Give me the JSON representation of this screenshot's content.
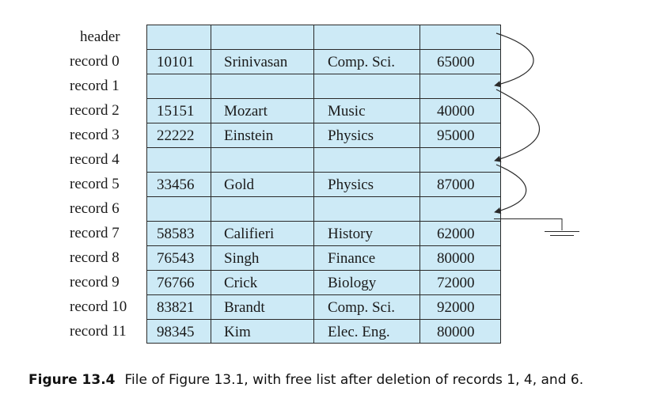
{
  "figure": {
    "labels": {
      "header": "header",
      "records": [
        "record 0",
        "record 1",
        "record 2",
        "record 3",
        "record 4",
        "record 5",
        "record 6",
        "record 7",
        "record 8",
        "record 9",
        "record 10",
        "record 11"
      ]
    },
    "rows": [
      [
        "10101",
        "Srinivasan",
        "Comp. Sci.",
        "65000"
      ],
      [
        "",
        "",
        "",
        ""
      ],
      [
        "15151",
        "Mozart",
        "Music",
        "40000"
      ],
      [
        "22222",
        "Einstein",
        "Physics",
        "95000"
      ],
      [
        "",
        "",
        "",
        ""
      ],
      [
        "33456",
        "Gold",
        "Physics",
        "87000"
      ],
      [
        "",
        "",
        "",
        ""
      ],
      [
        "58583",
        "Califieri",
        "History",
        "62000"
      ],
      [
        "76543",
        "Singh",
        "Finance",
        "80000"
      ],
      [
        "76766",
        "Crick",
        "Biology",
        "72000"
      ],
      [
        "83821",
        "Brandt",
        "Comp. Sci.",
        "92000"
      ],
      [
        "98345",
        "Kim",
        "Elec. Eng.",
        "80000"
      ]
    ],
    "free_list": [
      "header",
      "record 1",
      "record 4",
      "record 6",
      "null"
    ],
    "colors": {
      "fill": "#cdeaf6",
      "line": "#2a2a2a"
    }
  },
  "caption": {
    "number": "Figure 13.4",
    "text": "File of Figure 13.1, with free list after deletion of records 1, 4, and 6."
  }
}
